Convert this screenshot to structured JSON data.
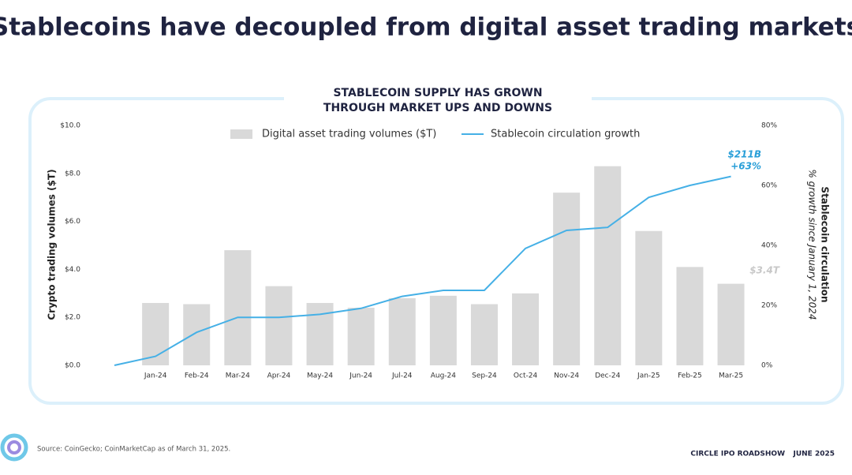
{
  "title": "Stablecoins have decoupled from digital asset trading markets",
  "chart_data": {
    "type": "bar-line",
    "title_lines": [
      "STABLECOIN SUPPLY HAS GROWN",
      "THROUGH  MARKET UPS AND DOWNS"
    ],
    "ylabel": "Crypto trading volumes ($T)",
    "y2label": "Stablecoin circulation",
    "y2sublabel": "% growth since January 1, 2024",
    "categories": [
      null,
      "Jan-24",
      "Feb-24",
      "Mar-24",
      "Apr-24",
      "May-24",
      "Jun-24",
      "Jul-24",
      "Aug-24",
      "Sep-24",
      "Oct-24",
      "Nov-24",
      "Dec-24",
      "Jan-25",
      "Feb-25",
      "Mar-25"
    ],
    "series": [
      {
        "name": "Digital asset trading volumes ($T)",
        "type": "bar",
        "color": "#d9d9d9",
        "axis": "y",
        "values": [
          null,
          2.6,
          2.55,
          4.8,
          3.3,
          2.6,
          2.4,
          2.8,
          2.9,
          2.55,
          3.0,
          7.2,
          8.3,
          5.6,
          4.1,
          3.4
        ]
      },
      {
        "name": "Stablecoin circulation growth",
        "type": "line",
        "color": "#45b0e6",
        "axis": "y2",
        "values": [
          0,
          3,
          11,
          16,
          16,
          17,
          19,
          23,
          25,
          25,
          39,
          45,
          46,
          56,
          60,
          63
        ]
      }
    ],
    "ylim": [
      0,
      10
    ],
    "yticks": [
      {
        "value": 0,
        "label": "$0.0"
      },
      {
        "value": 2,
        "label": "$2.0"
      },
      {
        "value": 4,
        "label": "$4.0"
      },
      {
        "value": 6,
        "label": "$6.0"
      },
      {
        "value": 8,
        "label": "$8.0"
      },
      {
        "value": 10,
        "label": "$10.0"
      }
    ],
    "y2lim": [
      0,
      80
    ],
    "y2ticks": [
      {
        "value": 0,
        "label": "0%"
      },
      {
        "value": 20,
        "label": "20%"
      },
      {
        "value": 40,
        "label": "40%"
      },
      {
        "value": 60,
        "label": "60%"
      },
      {
        "value": 80,
        "label": "80%"
      }
    ],
    "annotations": [
      "$211B",
      "+63%",
      "$3.4T"
    ],
    "grid": false,
    "legend": "top"
  },
  "footer": {
    "source": "Source: CoinGecko; CoinMarketCap as of March 31, 2025.",
    "left": "CIRCLE IPO ROADSHOW",
    "right": "JUNE 2025"
  }
}
